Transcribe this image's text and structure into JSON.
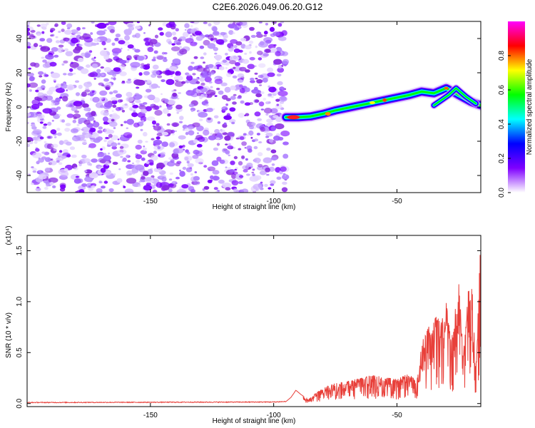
{
  "title": "C2E6.2026.049.06.20.G12",
  "chart_data": [
    {
      "type": "heatmap",
      "xlabel": "Height of straight line (km)",
      "ylabel": "Frequency (Hz)",
      "xlim": [
        -200,
        -16
      ],
      "ylim": [
        -50,
        50
      ],
      "xticks": [
        -150,
        -100,
        -50
      ],
      "yticks": [
        -40,
        -20,
        0,
        20,
        40
      ],
      "xtick_labels": [
        "-150",
        "-100",
        "-50"
      ],
      "ytick_labels": [
        "-40",
        "-20",
        "0",
        "20",
        "40"
      ],
      "noise_region_x": [
        -200,
        -95
      ],
      "signal_trace": {
        "x": [
          -95,
          -90,
          -85,
          -80,
          -75,
          -70,
          -65,
          -60,
          -55,
          -50,
          -45,
          -40,
          -35,
          -30,
          -25,
          -20,
          -16
        ],
        "y": [
          -6,
          -6,
          -5.5,
          -4,
          -2,
          -0.5,
          1,
          2.5,
          4,
          5.5,
          7,
          9,
          8,
          11,
          7,
          3,
          1
        ]
      },
      "branch_trace": {
        "x": [
          -35,
          -32,
          -29,
          -26,
          -22,
          -18
        ],
        "y": [
          1,
          4,
          7,
          11,
          6,
          2
        ]
      },
      "colorbar": {
        "label": "Normalized spectral amplitude",
        "range": [
          0,
          1
        ],
        "ticks": [
          0.0,
          0.2,
          0.4,
          0.6,
          0.8
        ],
        "tick_labels": [
          "0.0",
          "0.2",
          "0.4",
          "0.6",
          "0.8"
        ],
        "colors": [
          "#ffffff",
          "#7f00ff",
          "#0000ff",
          "#00ffff",
          "#00ff00",
          "#ffff00",
          "#ff0000",
          "#ff00ff"
        ]
      }
    },
    {
      "type": "line",
      "xlabel": "Height of straight line (km)",
      "ylabel": "SNR (10 * v/v)",
      "scale_label": "(x10⁴)",
      "xlim": [
        -200,
        -16
      ],
      "ylim": [
        -0.03,
        1.65
      ],
      "xticks": [
        -150,
        -100,
        -50
      ],
      "yticks": [
        0.0,
        0.5,
        1.0,
        1.5
      ],
      "xtick_labels": [
        "-150",
        "-100",
        "-50"
      ],
      "ytick_labels": [
        "0.0",
        "0.5",
        "1.0",
        "1.5"
      ],
      "color": "#e8403a",
      "series": [
        {
          "name": "SNR",
          "x": [
            -200,
            -100,
            -95,
            -93,
            -91,
            -89,
            -86,
            -83,
            -80,
            -75,
            -70,
            -65,
            -60,
            -55,
            -50,
            -45,
            -42,
            -40,
            -38,
            -35,
            -32,
            -30,
            -28,
            -25,
            -23,
            -20,
            -18,
            -17,
            -16
          ],
          "y": [
            0.01,
            0.015,
            0.02,
            0.06,
            0.13,
            0.09,
            0.04,
            0.1,
            0.15,
            0.2,
            0.22,
            0.25,
            0.28,
            0.26,
            0.24,
            0.3,
            0.22,
            0.6,
            0.7,
            0.9,
            0.8,
            1.0,
            0.6,
            1.2,
            0.5,
            1.45,
            0.3,
            1.0,
            1.65
          ]
        }
      ]
    }
  ]
}
